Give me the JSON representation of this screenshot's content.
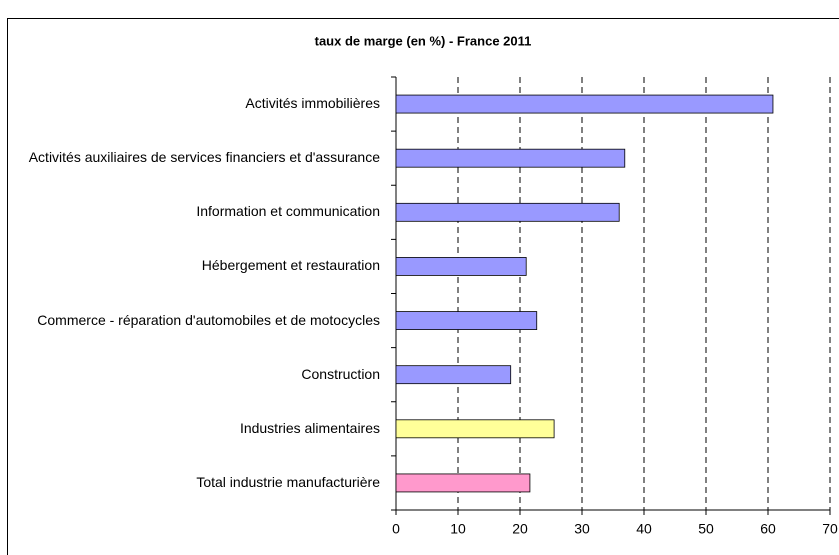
{
  "chart_data": {
    "type": "bar",
    "orientation": "horizontal",
    "title": "taux de marge (en %) - France 2011",
    "categories": [
      "Activités immobilières",
      "Activités auxiliaires de services financiers et d'assurance",
      "Information et communication",
      "Hébergement et restauration",
      "Commerce - réparation d'automobiles et de motocycles",
      "Construction",
      "Industries alimentaires",
      "Total industrie manufacturière"
    ],
    "values": [
      60.8,
      36.9,
      36.0,
      21.0,
      22.7,
      18.5,
      25.5,
      21.6
    ],
    "colors": [
      "#9999ff",
      "#9999ff",
      "#9999ff",
      "#9999ff",
      "#9999ff",
      "#9999ff",
      "#ffff99",
      "#ff99cc"
    ],
    "xlim": [
      0,
      70
    ],
    "xticks": [
      0,
      10,
      20,
      30,
      40,
      50,
      60,
      70
    ],
    "grid": true
  }
}
